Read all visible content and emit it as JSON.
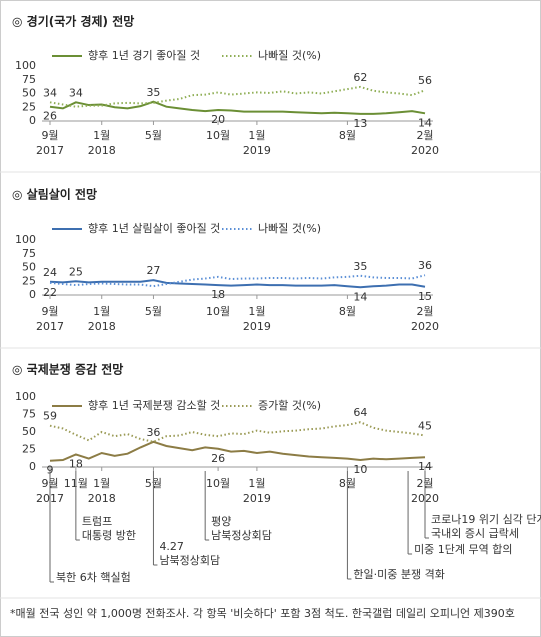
{
  "chart_data": [
    {
      "type": "line",
      "title": "◎  경기(국가 경제) 전망",
      "categories": [
        "9월",
        null,
        null,
        null,
        "1월",
        null,
        null,
        null,
        "5월",
        null,
        null,
        null,
        null,
        "10월",
        null,
        null,
        "1월",
        null,
        null,
        null,
        null,
        null,
        null,
        "8월",
        null,
        null,
        null,
        null,
        null,
        "2월"
      ],
      "years": [
        "2017",
        null,
        null,
        null,
        "2018",
        null,
        null,
        null,
        null,
        null,
        null,
        null,
        null,
        null,
        null,
        null,
        "2019",
        null,
        null,
        null,
        null,
        null,
        null,
        null,
        null,
        null,
        null,
        null,
        null,
        "2020"
      ],
      "ylim": [
        0,
        100
      ],
      "yticks": [
        0,
        25,
        50,
        75,
        100
      ],
      "series": [
        {
          "name": "향후 1년 경기 좋아질 것",
          "color": "#6b8f35",
          "style": "solid",
          "values": [
            26,
            23,
            34,
            29,
            30,
            25,
            23,
            27,
            35,
            26,
            23,
            20,
            18,
            20,
            19,
            17,
            17,
            17,
            17,
            16,
            15,
            14,
            15,
            14,
            13,
            13,
            14,
            16,
            18,
            14
          ],
          "labeled": [
            0,
            2,
            8,
            13,
            24,
            29
          ]
        },
        {
          "name": "나빠질 것(%)",
          "color": "#8fae55",
          "style": "dotted",
          "values": [
            34,
            30,
            26,
            28,
            28,
            32,
            33,
            32,
            33,
            37,
            40,
            47,
            48,
            52,
            48,
            50,
            52,
            51,
            54,
            50,
            52,
            50,
            54,
            58,
            62,
            55,
            52,
            50,
            47,
            56
          ],
          "labeled": [
            0,
            24,
            29
          ]
        }
      ]
    },
    {
      "type": "line",
      "title": "◎  살림살이 전망",
      "categories": [
        "9월",
        null,
        null,
        null,
        "1월",
        null,
        null,
        null,
        "5월",
        null,
        null,
        null,
        null,
        "10월",
        null,
        null,
        "1월",
        null,
        null,
        null,
        null,
        null,
        null,
        "8월",
        null,
        null,
        null,
        null,
        null,
        "2월"
      ],
      "years": [
        "2017",
        null,
        null,
        null,
        "2018",
        null,
        null,
        null,
        null,
        null,
        null,
        null,
        null,
        null,
        null,
        null,
        "2019",
        null,
        null,
        null,
        null,
        null,
        null,
        null,
        null,
        null,
        null,
        null,
        null,
        "2020"
      ],
      "ylim": [
        0,
        100
      ],
      "yticks": [
        0,
        25,
        50,
        75,
        100
      ],
      "series": [
        {
          "name": "향후 1년 살림살이 좋아질 것",
          "color": "#3d6fb0",
          "style": "solid",
          "values": [
            24,
            23,
            25,
            23,
            24,
            24,
            24,
            24,
            27,
            22,
            21,
            20,
            19,
            18,
            17,
            18,
            19,
            18,
            18,
            17,
            17,
            17,
            18,
            16,
            14,
            16,
            17,
            19,
            19,
            15
          ],
          "labeled": [
            0,
            2,
            8,
            13,
            24,
            29
          ]
        },
        {
          "name": "나빠질 것(%)",
          "color": "#5b8fd6",
          "style": "dotted",
          "values": [
            22,
            20,
            18,
            20,
            21,
            20,
            19,
            19,
            16,
            20,
            24,
            28,
            30,
            33,
            29,
            30,
            30,
            31,
            31,
            30,
            31,
            30,
            32,
            33,
            35,
            32,
            31,
            31,
            30,
            36
          ],
          "labeled": [
            0,
            24,
            29
          ]
        }
      ]
    },
    {
      "type": "line",
      "title": "◎  국제분쟁 증감 전망",
      "categories": [
        "9월",
        null,
        "11월",
        null,
        "1월",
        null,
        null,
        null,
        "5월",
        null,
        null,
        null,
        null,
        "10월",
        null,
        null,
        "1월",
        null,
        null,
        null,
        null,
        null,
        null,
        "8월",
        null,
        null,
        null,
        null,
        null,
        "2월"
      ],
      "years": [
        "2017",
        null,
        null,
        null,
        "2018",
        null,
        null,
        null,
        null,
        null,
        null,
        null,
        null,
        null,
        null,
        null,
        "2019",
        null,
        null,
        null,
        null,
        null,
        null,
        null,
        null,
        null,
        null,
        null,
        null,
        "2020"
      ],
      "ylim": [
        0,
        100
      ],
      "yticks": [
        0,
        25,
        50,
        75,
        100
      ],
      "series": [
        {
          "name": "향후 1년 국제분쟁 감소할 것",
          "color": "#8c7c45",
          "style": "solid",
          "values": [
            9,
            10,
            18,
            12,
            20,
            16,
            19,
            28,
            36,
            30,
            27,
            24,
            28,
            26,
            22,
            23,
            20,
            22,
            19,
            17,
            15,
            14,
            13,
            12,
            10,
            12,
            11,
            12,
            13,
            14
          ],
          "labeled": [
            0,
            2,
            8,
            13,
            24,
            29
          ]
        },
        {
          "name": "증가할 것(%)",
          "color": "#9a9a55",
          "style": "dotted",
          "values": [
            59,
            55,
            46,
            38,
            50,
            44,
            47,
            40,
            36,
            44,
            45,
            50,
            46,
            44,
            48,
            47,
            52,
            49,
            51,
            52,
            54,
            55,
            58,
            60,
            64,
            56,
            52,
            50,
            48,
            45
          ],
          "labeled": [
            0,
            24,
            29
          ]
        }
      ],
      "annotations": [
        {
          "lines": [
            "북한 6차 핵실험"
          ]
        },
        {
          "lines": [
            "트럼프",
            "대통령 방한"
          ]
        },
        {
          "lines": [
            "4.27",
            "남북정상회담"
          ]
        },
        {
          "lines": [
            "평양",
            "남북정상회담"
          ]
        },
        {
          "lines": [
            "한일·미중 분쟁 격화"
          ]
        },
        {
          "lines": [
            "미중 1단계 무역 합의"
          ]
        },
        {
          "lines": [
            "코로나19 위기 심각 단계",
            "국내외 증시 급락세"
          ]
        }
      ]
    }
  ],
  "footnote": "*매월 전국 성인 약 1,000명 전화조사. 각 항목 '비슷하다' 포함 3점 척도. 한국갤럽 데일리 오피니언 제390호"
}
